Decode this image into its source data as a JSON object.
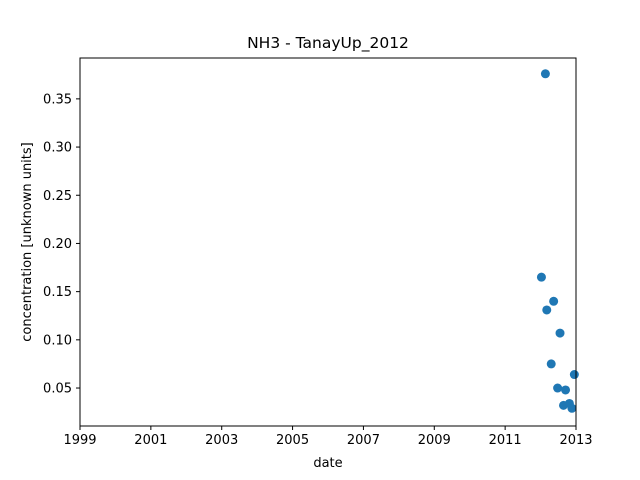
{
  "chart_data": {
    "type": "scatter",
    "title": "NH3 - TanayUp_2012",
    "xlabel": "date",
    "ylabel": "concentration [unknown units]",
    "x_ticks": [
      "1999",
      "2001",
      "2003",
      "2005",
      "2007",
      "2009",
      "2011",
      "2013"
    ],
    "y_ticks": [
      "0.05",
      "0.10",
      "0.15",
      "0.20",
      "0.25",
      "0.30",
      "0.35"
    ],
    "xlim": [
      "1999-01-01",
      "2013-01-01"
    ],
    "ylim": [
      0.0106,
      0.3924
    ],
    "grid": false,
    "marker_color": "#1f77b4",
    "series": [
      {
        "points": [
          {
            "x": "2012-01-10",
            "y": 0.165
          },
          {
            "x": "2012-02-20",
            "y": 0.376
          },
          {
            "x": "2012-03-05",
            "y": 0.131
          },
          {
            "x": "2012-04-20",
            "y": 0.075
          },
          {
            "x": "2012-05-15",
            "y": 0.14
          },
          {
            "x": "2012-06-25",
            "y": 0.05
          },
          {
            "x": "2012-07-20",
            "y": 0.107
          },
          {
            "x": "2012-08-25",
            "y": 0.032
          },
          {
            "x": "2012-09-15",
            "y": 0.048
          },
          {
            "x": "2012-10-25",
            "y": 0.034
          },
          {
            "x": "2012-11-20",
            "y": 0.029
          },
          {
            "x": "2012-12-15",
            "y": 0.064
          }
        ]
      }
    ]
  }
}
